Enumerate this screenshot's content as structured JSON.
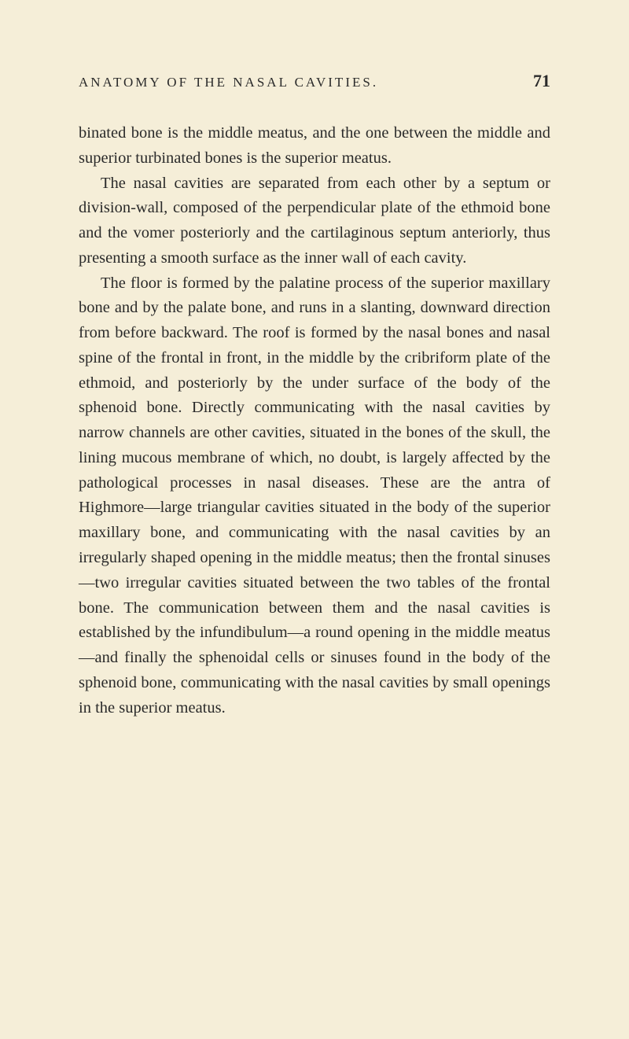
{
  "header": {
    "running_title": "ANATOMY OF THE NASAL CAVITIES.",
    "page_number": "71"
  },
  "paragraphs": [
    "binated bone is the middle meatus, and the one between the middle and superior turbinated bones is the superior meatus.",
    "The nasal cavities are separated from each other by a septum or division-wall, composed of the perpendicular plate of the ethmoid bone and the vomer posteriorly and the cartilaginous septum anteriorly, thus presenting a smooth surface as the inner wall of each cavity.",
    "The floor is formed by the palatine process of the superior maxillary bone and by the palate bone, and runs in a slanting, downward direction from before backward. The roof is formed by the nasal bones and nasal spine of the frontal in front, in the middle by the cribriform plate of the ethmoid, and posteriorly by the under surface of the body of the sphenoid bone. Directly communicating with the nasal cavities by narrow channels are other cavities, situated in the bones of the skull, the lining mucous membrane of which, no doubt, is largely affected by the pathological processes in nasal diseases. These are the antra of Highmore—large triangular cavities situated in the body of the superior maxillary bone, and communicating with the nasal cavities by an irregularly shaped opening in the middle meatus; then the frontal sinuses—two irregular cavities situated between the two tables of the frontal bone. The communication between them and the nasal cavities is established by the infundibulum—a round opening in the middle meatus—and finally the sphenoidal cells or sinuses found in the body of the sphenoid bone, communicating with the nasal cavities by small openings in the superior meatus."
  ]
}
